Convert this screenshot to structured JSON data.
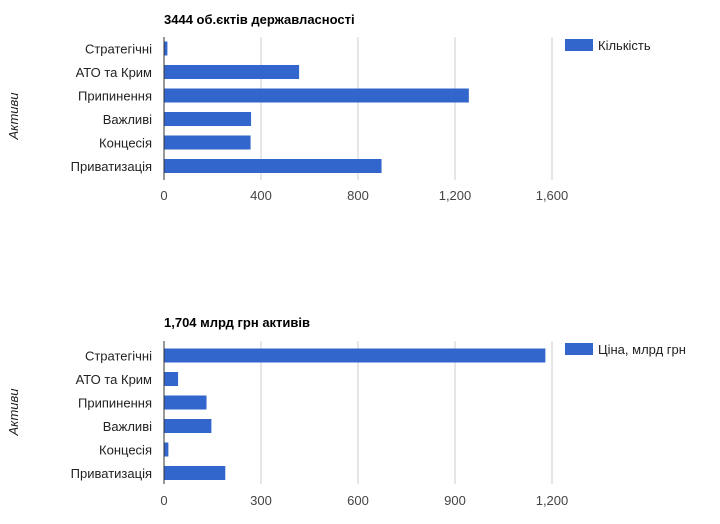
{
  "chart_data": [
    {
      "type": "bar",
      "orientation": "horizontal",
      "title": "3444 об.єктів державласності",
      "ylabel": "Активи",
      "xlabel": "",
      "categories": [
        "Стратегічні",
        "АТО та Крим",
        "Припинення",
        "Важливі",
        "Концесія",
        "Приватизація"
      ],
      "series": [
        {
          "name": "Кількість",
          "color": "#3366cc",
          "values": [
            12,
            555,
            1255,
            357,
            355,
            895
          ]
        }
      ],
      "xlim": [
        0,
        1600
      ],
      "ticks": [
        0,
        400,
        800,
        1200,
        1600
      ],
      "tick_labels": [
        "0",
        "400",
        "800",
        "1,200",
        "1,600"
      ],
      "grid": true,
      "legend": "right"
    },
    {
      "type": "bar",
      "orientation": "horizontal",
      "title": "1,704 млрд грн активів",
      "ylabel": "Активи",
      "xlabel": "",
      "categories": [
        "Стратегічні",
        "АТО та Крим",
        "Припинення",
        "Важливі",
        "Концесія",
        "Приватизація"
      ],
      "series": [
        {
          "name": "Ціна, млрд грн",
          "color": "#3366cc",
          "values": [
            1178,
            42,
            130,
            145,
            12,
            188
          ]
        }
      ],
      "xlim": [
        0,
        1200
      ],
      "ticks": [
        0,
        300,
        600,
        900,
        1200
      ],
      "tick_labels": [
        "0",
        "300",
        "600",
        "900",
        "1,200"
      ],
      "grid": true,
      "legend": "right"
    }
  ]
}
